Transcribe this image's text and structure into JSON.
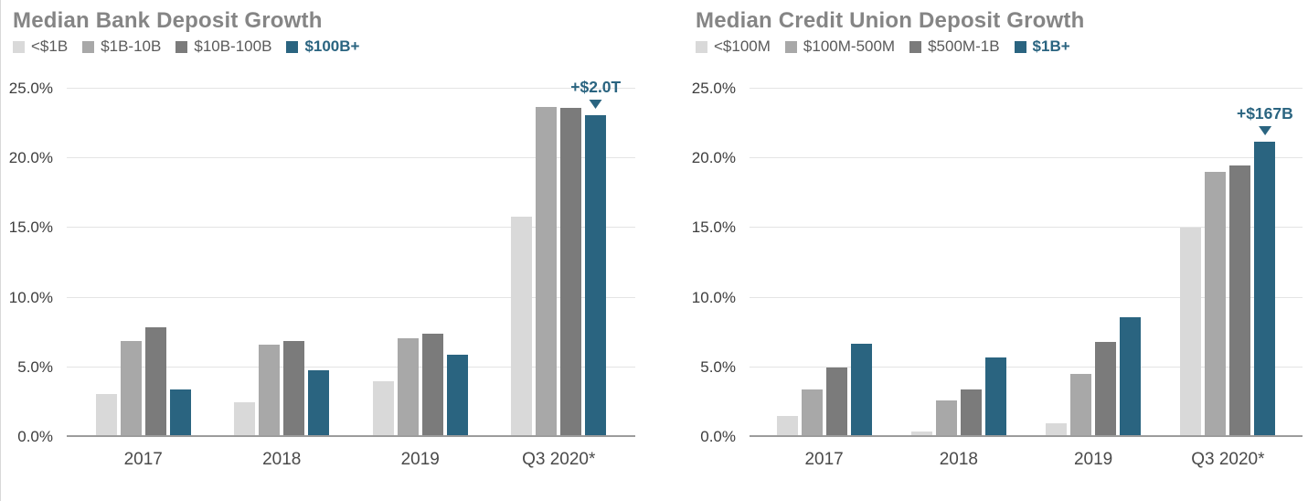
{
  "layout_colors": {
    "background": "#ffffff",
    "divider": "#d8d8d8",
    "title_text": "#858585",
    "legend_text": "#5a5a5a",
    "axis_tick_text": "#3d3d3d",
    "category_text": "#4a4a4a",
    "gridline": "#e4e4e4",
    "baseline": "#9c9c9c",
    "accent_teal": "#2a6480",
    "bar_light_gray": "#d9d9d9",
    "bar_mid_gray": "#a8a8a8",
    "bar_dark_gray": "#7b7b7b"
  },
  "chart_data": [
    {
      "type": "bar",
      "title": "Median Bank Deposit Growth",
      "categories": [
        "2017",
        "2018",
        "2019",
        "Q3 2020*"
      ],
      "series": [
        {
          "name": "<$1B",
          "color": "#d9d9d9",
          "values": [
            3.1,
            2.5,
            4.0,
            15.8
          ]
        },
        {
          "name": "$1B-10B",
          "color": "#a8a8a8",
          "values": [
            6.9,
            6.6,
            7.1,
            23.7
          ]
        },
        {
          "name": "$10B-100B",
          "color": "#7b7b7b",
          "values": [
            7.9,
            6.9,
            7.4,
            23.6
          ]
        },
        {
          "name": "$100B+",
          "color": "#2a6480",
          "values": [
            3.4,
            4.8,
            5.9,
            23.1
          ]
        }
      ],
      "ylabel": "",
      "xlabel": "",
      "ylim": [
        0,
        25
      ],
      "yticks": [
        {
          "value": 25,
          "label": "25.0%"
        },
        {
          "value": 20,
          "label": "20.0%"
        },
        {
          "value": 15,
          "label": "15.0%"
        },
        {
          "value": 10,
          "label": "10.0%"
        },
        {
          "value": 5,
          "label": "5.0%"
        },
        {
          "value": 0,
          "label": "0.0%"
        }
      ],
      "grid": true,
      "legend_position": "top-left",
      "annotation": {
        "text": "+$2.0T",
        "series_index": 3,
        "category_index": 3,
        "color": "#2a6480",
        "marker": "down-triangle"
      }
    },
    {
      "type": "bar",
      "title": "Median Credit Union Deposit Growth",
      "categories": [
        "2017",
        "2018",
        "2019",
        "Q3 2020*"
      ],
      "series": [
        {
          "name": "<$100M",
          "color": "#d9d9d9",
          "values": [
            1.5,
            0.4,
            1.0,
            15.0
          ]
        },
        {
          "name": "$100M-500M",
          "color": "#a8a8a8",
          "values": [
            3.4,
            2.6,
            4.5,
            19.0
          ]
        },
        {
          "name": "$500M-1B",
          "color": "#7b7b7b",
          "values": [
            5.0,
            3.4,
            6.8,
            19.5
          ]
        },
        {
          "name": "$1B+",
          "color": "#2a6480",
          "values": [
            6.7,
            5.7,
            8.6,
            21.2
          ]
        }
      ],
      "ylabel": "",
      "xlabel": "",
      "ylim": [
        0,
        25
      ],
      "yticks": [
        {
          "value": 25,
          "label": "25.0%"
        },
        {
          "value": 20,
          "label": "20.0%"
        },
        {
          "value": 15,
          "label": "15.0%"
        },
        {
          "value": 10,
          "label": "10.0%"
        },
        {
          "value": 5,
          "label": "5.0%"
        },
        {
          "value": 0,
          "label": "0.0%"
        }
      ],
      "grid": true,
      "legend_position": "top-left",
      "annotation": {
        "text": "+$167B",
        "series_index": 3,
        "category_index": 3,
        "color": "#2a6480",
        "marker": "down-triangle"
      }
    }
  ]
}
